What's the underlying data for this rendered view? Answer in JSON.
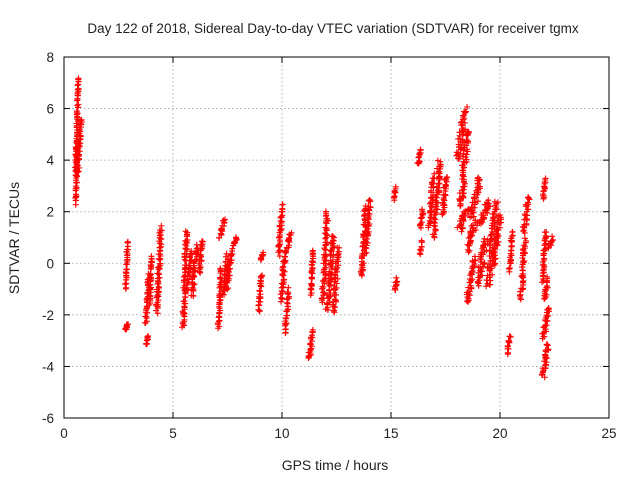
{
  "chart_data": {
    "type": "scatter",
    "title": "Day 122 of 2018, Sidereal Day-to-day VTEC variation (SDTVAR) for receiver tgmx",
    "xlabel": "GPS time / hours",
    "ylabel": "SDTVAR / TECUs",
    "xlim": [
      0,
      25
    ],
    "ylim": [
      -6,
      8
    ],
    "xticks": [
      "0",
      "5",
      "10",
      "15",
      "20",
      "25"
    ],
    "yticks": [
      "-6",
      "-4",
      "-2",
      "0",
      "2",
      "4",
      "6",
      "8"
    ],
    "grid": true,
    "marker": "+",
    "series": [
      {
        "name": "SDTVAR",
        "color": "#ff0000",
        "segments": [
          {
            "x": [
              0.5,
              0.65
            ],
            "y": [
              2.3,
              4.5
            ]
          },
          {
            "x": [
              0.5,
              0.7
            ],
            "y": [
              3.4,
              7.2
            ]
          },
          {
            "x": [
              0.55,
              0.85
            ],
            "y": [
              3.5,
              5.6
            ]
          },
          {
            "x": [
              2.8,
              2.95
            ],
            "y": [
              -1.0,
              0.9
            ]
          },
          {
            "x": [
              2.8,
              2.95
            ],
            "y": [
              -2.6,
              -2.3
            ]
          },
          {
            "x": [
              3.75,
              3.9
            ],
            "y": [
              -3.2,
              -2.8
            ]
          },
          {
            "x": [
              3.7,
              3.95
            ],
            "y": [
              -2.3,
              -0.4
            ]
          },
          {
            "x": [
              3.9,
              4.05
            ],
            "y": [
              -1.6,
              0.3
            ]
          },
          {
            "x": [
              4.2,
              4.5
            ],
            "y": [
              -1.9,
              1.4
            ]
          },
          {
            "x": [
              5.4,
              5.7
            ],
            "y": [
              -2.5,
              1.3
            ]
          },
          {
            "x": [
              5.6,
              5.9
            ],
            "y": [
              -1.0,
              0.5
            ]
          },
          {
            "x": [
              5.8,
              6.15
            ],
            "y": [
              -1.3,
              0.7
            ]
          },
          {
            "x": [
              6.15,
              6.4
            ],
            "y": [
              -0.4,
              0.9
            ]
          },
          {
            "x": [
              7.05,
              7.25
            ],
            "y": [
              -2.5,
              -0.2
            ]
          },
          {
            "x": [
              7.1,
              7.4
            ],
            "y": [
              1.0,
              1.7
            ]
          },
          {
            "x": [
              7.25,
              7.55
            ],
            "y": [
              -1.2,
              0.3
            ]
          },
          {
            "x": [
              7.4,
              7.75
            ],
            "y": [
              -1.0,
              0.5
            ]
          },
          {
            "x": [
              7.75,
              7.95
            ],
            "y": [
              0.7,
              1.0
            ]
          },
          {
            "x": [
              8.9,
              9.1
            ],
            "y": [
              -1.9,
              -0.4
            ]
          },
          {
            "x": [
              9.0,
              9.15
            ],
            "y": [
              0.1,
              0.4
            ]
          },
          {
            "x": [
              9.8,
              10.05
            ],
            "y": [
              0.3,
              2.3
            ]
          },
          {
            "x": [
              9.9,
              10.2
            ],
            "y": [
              -1.5,
              0.5
            ]
          },
          {
            "x": [
              10.1,
              10.35
            ],
            "y": [
              -2.7,
              -1.0
            ]
          },
          {
            "x": [
              10.2,
              10.45
            ],
            "y": [
              0.6,
              1.2
            ]
          },
          {
            "x": [
              11.2,
              11.45
            ],
            "y": [
              -3.7,
              -2.6
            ]
          },
          {
            "x": [
              11.3,
              11.45
            ],
            "y": [
              -1.2,
              0.5
            ]
          },
          {
            "x": [
              11.8,
              12.15
            ],
            "y": [
              -1.5,
              2.0
            ]
          },
          {
            "x": [
              12.0,
              12.45
            ],
            "y": [
              -1.8,
              1.1
            ]
          },
          {
            "x": [
              12.3,
              12.65
            ],
            "y": [
              -1.9,
              0.6
            ]
          },
          {
            "x": [
              13.6,
              13.9
            ],
            "y": [
              -0.5,
              2.2
            ]
          },
          {
            "x": [
              13.8,
              14.1
            ],
            "y": [
              0.4,
              2.5
            ]
          },
          {
            "x": [
              15.1,
              15.25
            ],
            "y": [
              2.5,
              2.9
            ]
          },
          {
            "x": [
              15.15,
              15.3
            ],
            "y": [
              -1.1,
              -0.6
            ]
          },
          {
            "x": [
              16.2,
              16.4
            ],
            "y": [
              3.8,
              4.4
            ]
          },
          {
            "x": [
              16.3,
              16.5
            ],
            "y": [
              1.4,
              2.1
            ]
          },
          {
            "x": [
              16.3,
              16.45
            ],
            "y": [
              0.4,
              0.9
            ]
          },
          {
            "x": [
              16.7,
              17.0
            ],
            "y": [
              1.4,
              3.4
            ]
          },
          {
            "x": [
              16.9,
              17.3
            ],
            "y": [
              1.0,
              4.0
            ]
          },
          {
            "x": [
              17.3,
              17.6
            ],
            "y": [
              1.9,
              3.4
            ]
          },
          {
            "x": [
              17.95,
              18.5
            ],
            "y": [
              4.0,
              6.0
            ]
          },
          {
            "x": [
              18.1,
              18.6
            ],
            "y": [
              2.2,
              5.2
            ]
          },
          {
            "x": [
              18.0,
              18.6
            ],
            "y": [
              1.3,
              2.1
            ]
          },
          {
            "x": [
              18.4,
              19.0
            ],
            "y": [
              0.5,
              1.7
            ]
          },
          {
            "x": [
              18.6,
              19.2
            ],
            "y": [
              1.8,
              3.3
            ]
          },
          {
            "x": [
              18.4,
              18.9
            ],
            "y": [
              -1.5,
              0.2
            ]
          },
          {
            "x": [
              18.9,
              19.5
            ],
            "y": [
              -0.8,
              1.0
            ]
          },
          {
            "x": [
              19.3,
              20.0
            ],
            "y": [
              -0.9,
              2.4
            ]
          },
          {
            "x": [
              19.0,
              19.6
            ],
            "y": [
              1.5,
              2.4
            ]
          },
          {
            "x": [
              19.6,
              20.1
            ],
            "y": [
              -0.1,
              1.9
            ]
          },
          {
            "x": [
              20.3,
              20.5
            ],
            "y": [
              -3.5,
              -2.8
            ]
          },
          {
            "x": [
              20.4,
              20.6
            ],
            "y": [
              -0.3,
              1.2
            ]
          },
          {
            "x": [
              20.9,
              21.2
            ],
            "y": [
              -1.4,
              0.9
            ]
          },
          {
            "x": [
              21.0,
              21.4
            ],
            "y": [
              1.2,
              2.6
            ]
          },
          {
            "x": [
              21.95,
              22.1
            ],
            "y": [
              2.5,
              3.3
            ]
          },
          {
            "x": [
              21.9,
              22.15
            ],
            "y": [
              -0.7,
              1.2
            ]
          },
          {
            "x": [
              22.0,
              22.25
            ],
            "y": [
              -1.4,
              -0.6
            ]
          },
          {
            "x": [
              21.9,
              22.3
            ],
            "y": [
              -2.9,
              -1.7
            ]
          },
          {
            "x": [
              21.9,
              22.3
            ],
            "y": [
              -4.4,
              -3.1
            ]
          },
          {
            "x": [
              22.2,
              22.45
            ],
            "y": [
              0.6,
              1.0
            ]
          }
        ]
      }
    ]
  }
}
